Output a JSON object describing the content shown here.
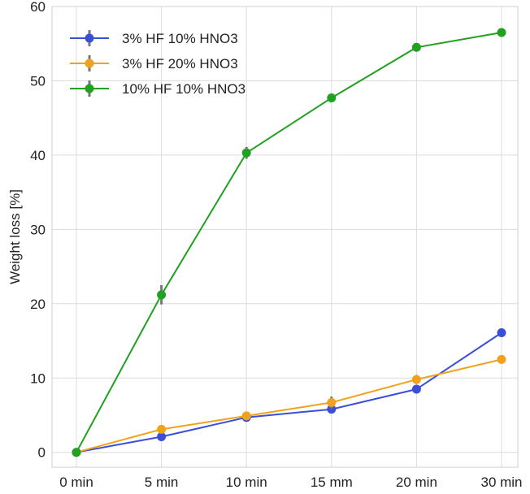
{
  "chart_data": {
    "type": "line",
    "categories": [
      "0 min",
      "5 min",
      "10 min",
      "15 mm",
      "20 min",
      "30 min"
    ],
    "ylabel": "Weight loss  [%]",
    "xlabel": "",
    "ylim": [
      -2,
      60
    ],
    "yticks": [
      0,
      10,
      20,
      30,
      40,
      50,
      60
    ],
    "grid": true,
    "legend_position": "top-left",
    "series": [
      {
        "name": "3% HF 10% HNO3",
        "color": "#3a4fd6",
        "values": [
          0,
          2.1,
          4.7,
          5.8,
          8.5,
          16.1
        ],
        "errors": [
          0,
          0,
          0.3,
          0,
          0,
          0
        ]
      },
      {
        "name": "3% HF 20% HNO3",
        "color": "#f0a21e",
        "values": [
          0,
          3.1,
          4.9,
          6.7,
          9.8,
          12.5
        ],
        "errors": [
          0,
          0,
          0,
          0.8,
          0.6,
          0
        ]
      },
      {
        "name": "10% HF 10% HNO3",
        "color": "#22a022",
        "values": [
          0,
          21.2,
          40.3,
          47.7,
          54.5,
          56.5
        ],
        "errors": [
          0,
          1.3,
          0.8,
          0.4,
          0,
          0
        ]
      }
    ]
  }
}
